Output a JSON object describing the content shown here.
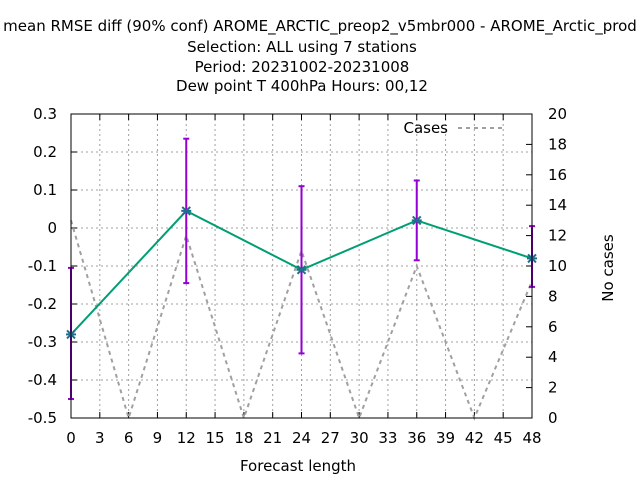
{
  "chart_data": {
    "type": "line",
    "title_lines": [
      "mean RMSE diff (90% conf) AROME_ARCTIC_preop2_v5mbr000 - AROME_Arctic_prod",
      "Selection: ALL using     7 stations",
      "Period: 20231002-20231008",
      "Dew point T 400hPa   Hours:  00,12"
    ],
    "xlabel": "Forecast length",
    "ylabel": "",
    "y2label": "No cases",
    "x_ticks": [
      "0",
      "3",
      "6",
      "9",
      "12",
      "15",
      "18",
      "21",
      "24",
      "27",
      "30",
      "33",
      "36",
      "39",
      "42",
      "45",
      "48"
    ],
    "y_ticks": [
      "0.3",
      "0.2",
      "0.1",
      "0",
      "-0.1",
      "-0.2",
      "-0.3",
      "-0.4",
      "-0.5"
    ],
    "y2_ticks": [
      "20",
      "18",
      "16",
      "14",
      "12",
      "10",
      "8",
      "6",
      "4",
      "2",
      "0"
    ],
    "xlim": [
      0,
      48
    ],
    "ylim": [
      -0.5,
      0.3
    ],
    "y2lim": [
      0,
      20
    ],
    "grid": true,
    "legend_position": "top-right",
    "series": [
      {
        "name": "",
        "color": "#009e73",
        "marker_color": "#1f6f8b",
        "axis": "left",
        "x": [
          0,
          12,
          24,
          36,
          48
        ],
        "y": [
          -0.28,
          0.045,
          -0.11,
          0.02,
          -0.08
        ],
        "err_low": [
          -0.45,
          -0.145,
          -0.33,
          -0.085,
          -0.155
        ],
        "err_high": [
          -0.105,
          0.235,
          0.11,
          0.125,
          0.005
        ],
        "err_color": "#9400d3"
      },
      {
        "name": "Cases",
        "color": "#a0a0a0",
        "axis": "right",
        "dashed": true,
        "x": [
          0,
          6,
          12,
          18,
          24,
          30,
          36,
          42,
          48
        ],
        "y": [
          13,
          0,
          12,
          0,
          11,
          0,
          10,
          0,
          9
        ]
      }
    ]
  }
}
